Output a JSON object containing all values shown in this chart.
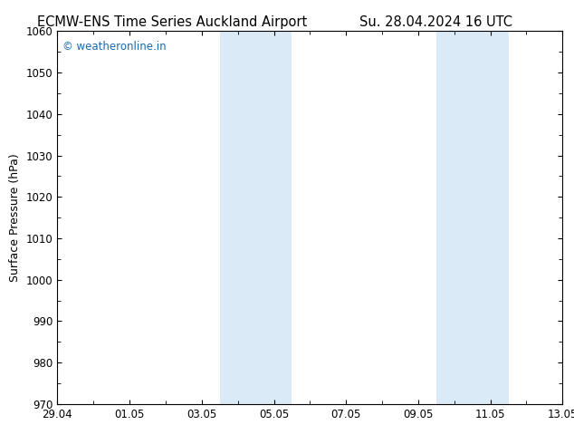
{
  "title_left": "ECMW-ENS Time Series Auckland Airport",
  "title_right": "Su. 28.04.2024 16 UTC",
  "ylabel": "Surface Pressure (hPa)",
  "ylim": [
    970,
    1060
  ],
  "yticks": [
    970,
    980,
    990,
    1000,
    1010,
    1020,
    1030,
    1040,
    1050,
    1060
  ],
  "xlabel_ticks": [
    "29.04",
    "01.05",
    "03.05",
    "05.05",
    "07.05",
    "09.05",
    "11.05",
    "13.05"
  ],
  "x_positions": [
    0,
    2,
    4,
    6,
    8,
    10,
    12,
    14
  ],
  "xlim": [
    0,
    14
  ],
  "watermark": "© weatheronline.in",
  "watermark_color": "#1a6bb5",
  "background_color": "#ffffff",
  "plot_bg_color": "#ffffff",
  "shaded_bands": [
    {
      "xstart": 4.5,
      "xend": 6.5
    },
    {
      "xstart": 10.5,
      "xend": 12.5
    }
  ],
  "shaded_color": "#daeaf7",
  "border_color": "#000000",
  "title_fontsize": 10.5,
  "axis_label_fontsize": 9,
  "tick_fontsize": 8.5,
  "watermark_fontsize": 8.5,
  "figsize": [
    6.34,
    4.9
  ],
  "dpi": 100
}
